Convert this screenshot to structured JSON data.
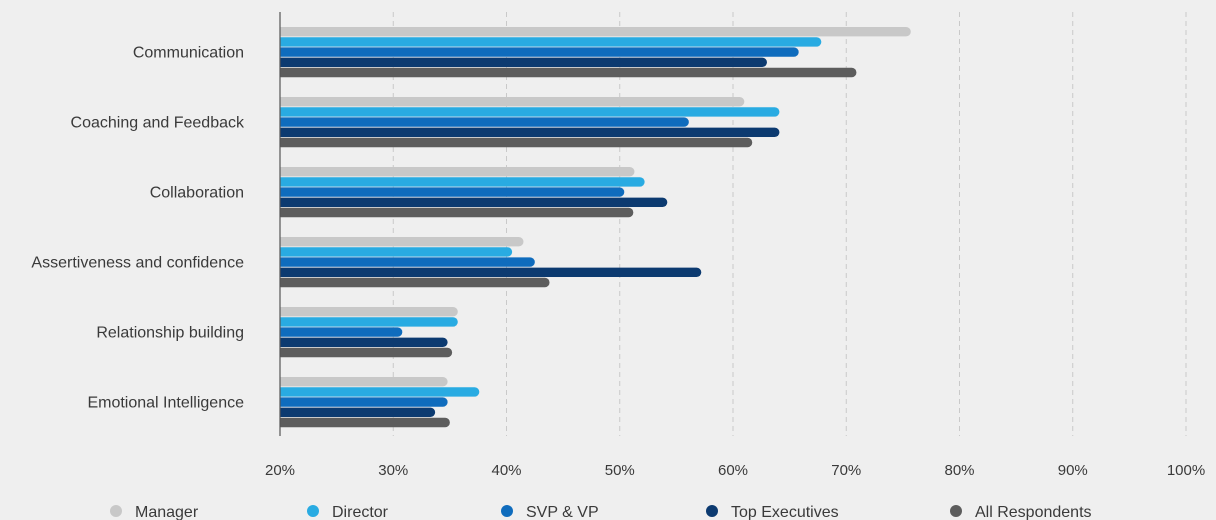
{
  "chart_data": {
    "type": "bar",
    "orientation": "horizontal",
    "title": "",
    "xlabel": "",
    "ylabel": "",
    "xlim": [
      20,
      100
    ],
    "x_ticks": [
      20,
      30,
      40,
      50,
      60,
      70,
      80,
      90,
      100
    ],
    "x_tick_labels": [
      "20%",
      "30%",
      "40%",
      "50%",
      "60%",
      "70%",
      "80%",
      "90%",
      "100%"
    ],
    "grid": true,
    "legend_position": "bottom",
    "categories": [
      "Communication",
      "Coaching and Feedback",
      "Collaboration",
      "Assertiveness and confidence",
      "Relationship building",
      "Emotional Intelligence"
    ],
    "series": [
      {
        "name": "Manager",
        "color": "#c8c8c8",
        "values": [
          75.7,
          61.0,
          51.3,
          41.5,
          35.7,
          34.8
        ]
      },
      {
        "name": "Director",
        "color": "#29abe2",
        "values": [
          67.8,
          64.1,
          52.2,
          40.5,
          35.7,
          37.6
        ]
      },
      {
        "name": "SVP & VP",
        "color": "#0f6cbd",
        "values": [
          65.8,
          56.1,
          50.4,
          42.5,
          30.8,
          34.8
        ]
      },
      {
        "name": "Top Executives",
        "color": "#0c3a70",
        "values": [
          63.0,
          64.1,
          54.2,
          57.2,
          34.8,
          33.7
        ]
      },
      {
        "name": "All Respondents",
        "color": "#5d5d5d",
        "values": [
          70.9,
          61.7,
          51.2,
          43.8,
          35.2,
          35.0
        ]
      }
    ]
  }
}
